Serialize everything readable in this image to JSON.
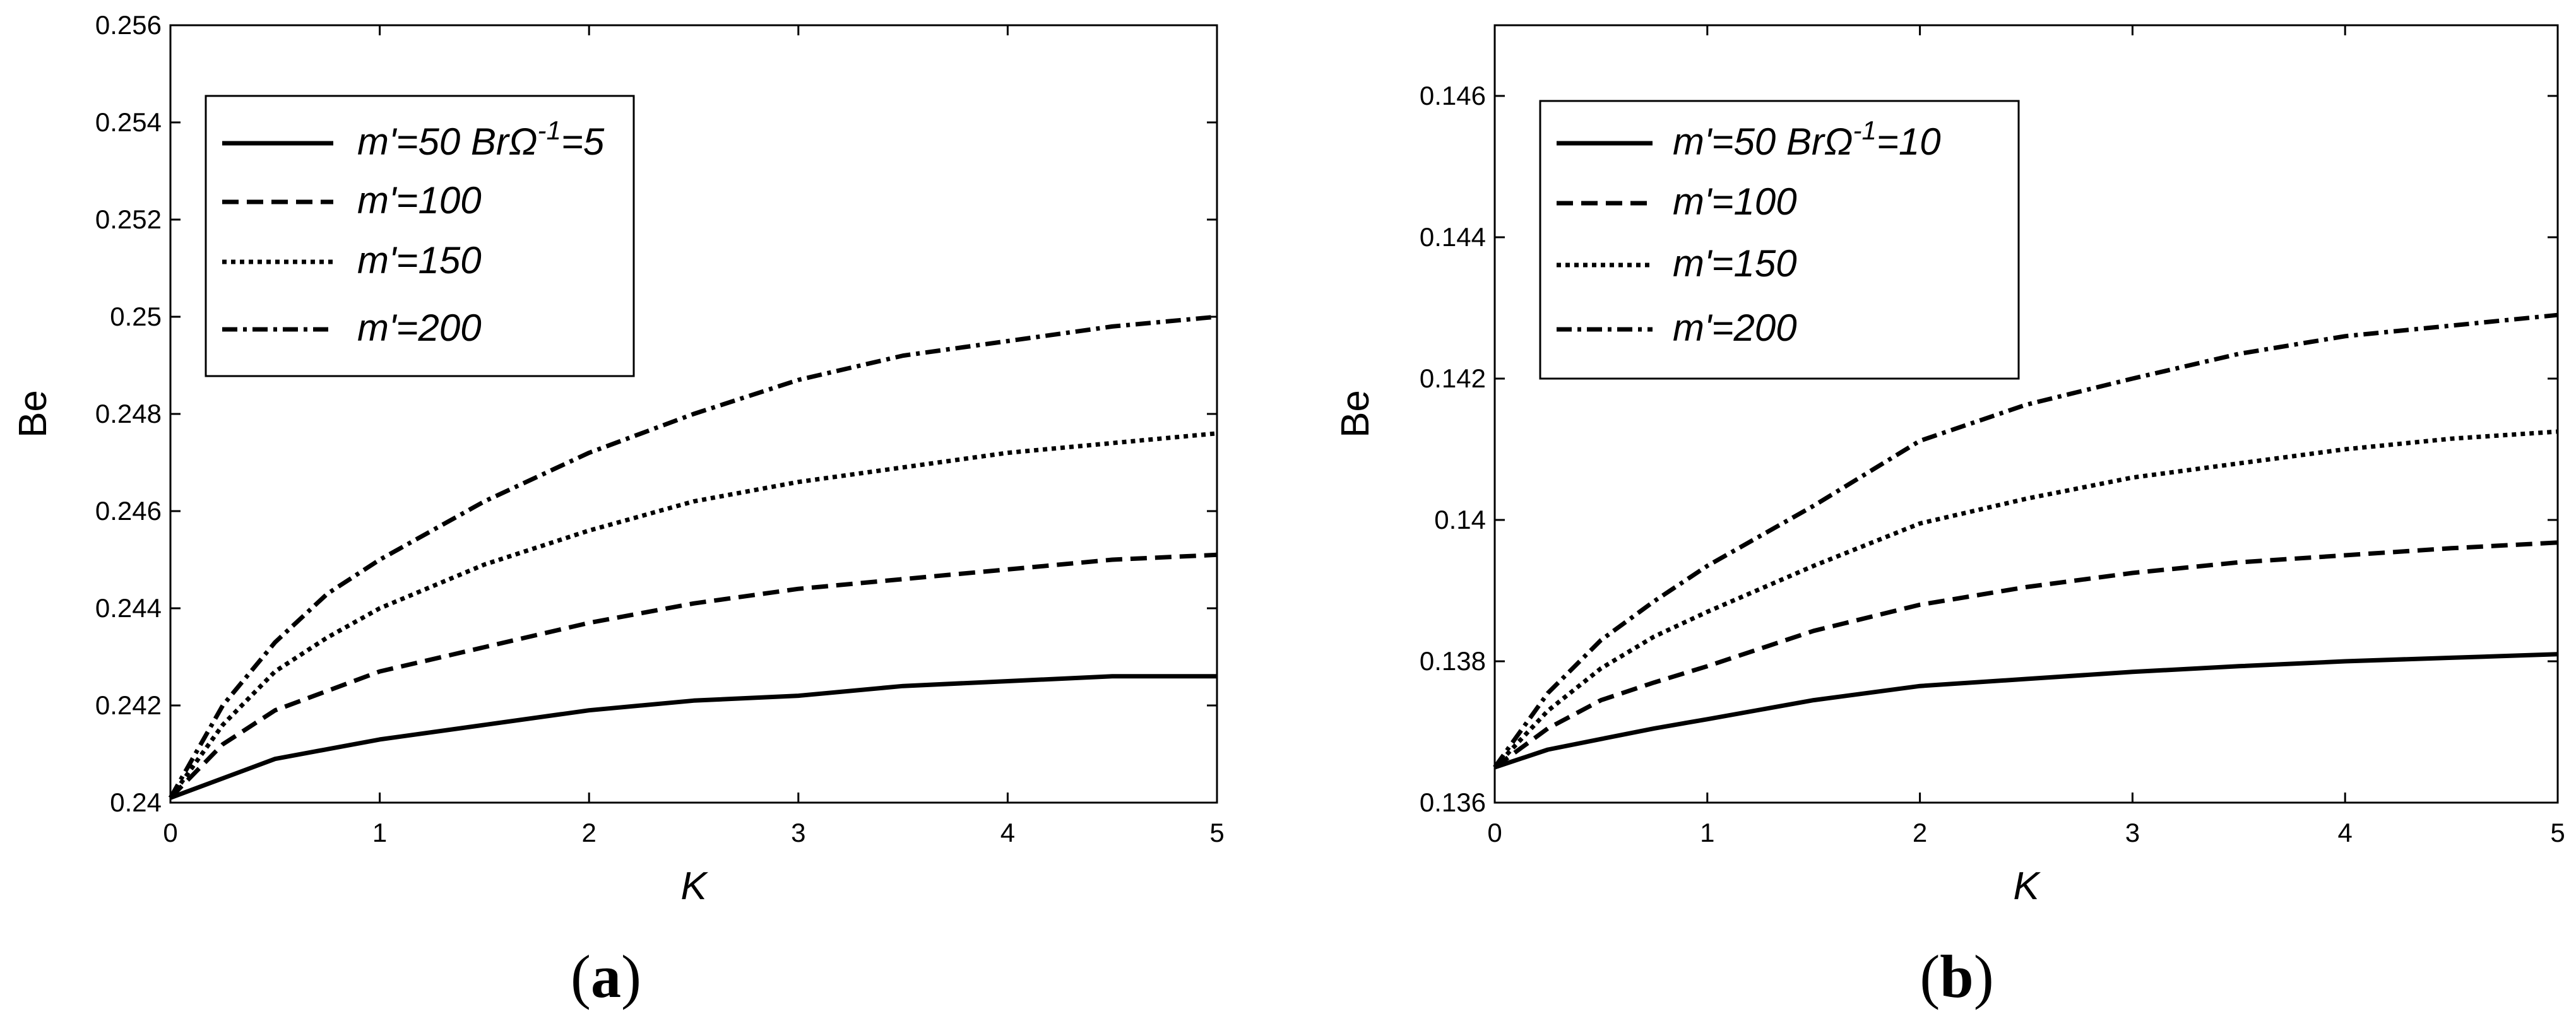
{
  "chart_data": [
    {
      "type": "line",
      "panel_label": "a",
      "xlabel": "K",
      "ylabel": "Be",
      "xlim": [
        0,
        5
      ],
      "ylim": [
        0.24,
        0.256
      ],
      "xticks": [
        "0",
        "1",
        "2",
        "3",
        "4",
        "5"
      ],
      "yticks": [
        "0.24",
        "0.242",
        "0.244",
        "0.246",
        "0.248",
        "0.25",
        "0.252",
        "0.254",
        "0.256"
      ],
      "legend": {
        "placement": "top-left",
        "entries": [
          {
            "prefix": "m'=50 BrΩ",
            "superscript": "-1",
            "suffix": "=5",
            "dash": "solid"
          },
          {
            "prefix": "m'=100",
            "superscript": "",
            "suffix": "",
            "dash": "dashed"
          },
          {
            "prefix": "m'=150",
            "superscript": "",
            "suffix": "",
            "dash": "dotted"
          },
          {
            "prefix": "m'=200",
            "superscript": "",
            "suffix": "",
            "dash": "dashdot"
          }
        ]
      },
      "x": [
        0,
        0.25,
        0.5,
        0.75,
        1,
        1.5,
        2,
        2.5,
        3,
        3.5,
        4,
        4.5,
        5
      ],
      "series": [
        {
          "dash": "solid",
          "values": [
            0.2401,
            0.2405,
            0.2409,
            0.2411,
            0.2413,
            0.2416,
            0.2419,
            0.2421,
            0.2422,
            0.2424,
            0.2425,
            0.2426,
            0.2426
          ]
        },
        {
          "dash": "dashed",
          "values": [
            0.2401,
            0.2412,
            0.2419,
            0.2423,
            0.2427,
            0.2432,
            0.2437,
            0.2441,
            0.2444,
            0.2446,
            0.2448,
            0.245,
            0.2451
          ]
        },
        {
          "dash": "dotted",
          "values": [
            0.2401,
            0.2416,
            0.2427,
            0.2434,
            0.244,
            0.2449,
            0.2456,
            0.2462,
            0.2466,
            0.2469,
            0.2472,
            0.2474,
            0.2476
          ]
        },
        {
          "dash": "dashdot",
          "values": [
            0.2401,
            0.242,
            0.2433,
            0.2443,
            0.245,
            0.2462,
            0.2472,
            0.248,
            0.2487,
            0.2492,
            0.2495,
            0.2498,
            0.25
          ]
        }
      ]
    },
    {
      "type": "line",
      "panel_label": "b",
      "xlabel": "K",
      "ylabel": "Be",
      "xlim": [
        0,
        5
      ],
      "ylim": [
        0.136,
        0.147
      ],
      "xticks": [
        "0",
        "1",
        "2",
        "3",
        "4",
        "5"
      ],
      "yticks": [
        "0.136",
        "0.138",
        "0.14",
        "0.142",
        "0.144",
        "0.146"
      ],
      "legend": {
        "placement": "top-left",
        "entries": [
          {
            "prefix": "m'=50 BrΩ",
            "superscript": "-1",
            "suffix": "=10",
            "dash": "solid"
          },
          {
            "prefix": "m'=100",
            "superscript": "",
            "suffix": "",
            "dash": "dashed"
          },
          {
            "prefix": "m'=150",
            "superscript": "",
            "suffix": "",
            "dash": "dotted"
          },
          {
            "prefix": "m'=200",
            "superscript": "",
            "suffix": "",
            "dash": "dashdot"
          }
        ]
      },
      "x": [
        0,
        0.25,
        0.5,
        0.75,
        1,
        1.5,
        2,
        2.5,
        3,
        3.5,
        4,
        4.5,
        5
      ],
      "series": [
        {
          "dash": "solid",
          "values": [
            0.1365,
            0.13675,
            0.1369,
            0.13705,
            0.13718,
            0.13745,
            0.13765,
            0.13775,
            0.13785,
            0.13793,
            0.138,
            0.13805,
            0.1381
          ]
        },
        {
          "dash": "dashed",
          "values": [
            0.1365,
            0.13705,
            0.13745,
            0.1377,
            0.13793,
            0.13843,
            0.1388,
            0.13905,
            0.13925,
            0.1394,
            0.1395,
            0.1396,
            0.13968
          ]
        },
        {
          "dash": "dotted",
          "values": [
            0.1365,
            0.1373,
            0.1379,
            0.13835,
            0.1387,
            0.13935,
            0.13995,
            0.1403,
            0.1406,
            0.1408,
            0.141,
            0.14115,
            0.14125
          ]
        },
        {
          "dash": "dashdot",
          "values": [
            0.1365,
            0.13755,
            0.1383,
            0.13885,
            0.13935,
            0.1402,
            0.14112,
            0.14163,
            0.142,
            0.14235,
            0.1426,
            0.14275,
            0.1429
          ]
        }
      ]
    }
  ]
}
